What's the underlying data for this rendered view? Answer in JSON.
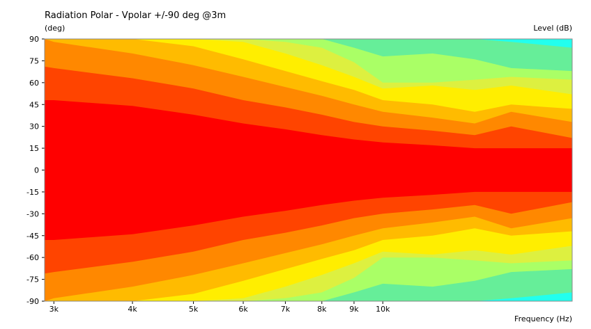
{
  "chart_data": {
    "type": "heatmap",
    "title": "Radiation Polar - Vpolar +/-90 deg @3m",
    "ylabel": "(deg)",
    "xlabel": "Frequency  (Hz)",
    "colorbar_label": "Level  (dB)",
    "x_scale": "log",
    "xlim": [
      2900,
      20000
    ],
    "ylim": [
      -90,
      90
    ],
    "x_ticks": [
      3000,
      4000,
      5000,
      6000,
      7000,
      8000,
      9000,
      10000
    ],
    "x_tick_labels": [
      "3k",
      "4k",
      "5k",
      "6k",
      "7k",
      "8k",
      "9k",
      "10k"
    ],
    "y_ticks": [
      90,
      75,
      60,
      45,
      30,
      15,
      0,
      -15,
      -30,
      -45,
      -60,
      -75,
      -90
    ],
    "y_tick_labels": [
      "90",
      "75",
      "60",
      "45",
      "30",
      "15",
      "0",
      "-15",
      "-30",
      "-45",
      "-60",
      "-75",
      "-90"
    ],
    "grid": false,
    "symmetric_about_zero": true,
    "contour_levels": [
      {
        "color": "#ff0000",
        "band": "highest"
      },
      {
        "color": "#ff4400",
        "band": "level 2"
      },
      {
        "color": "#ff8800",
        "band": "level 3"
      },
      {
        "color": "#ffbb00",
        "band": "level 4"
      },
      {
        "color": "#ffee00",
        "band": "level 5"
      },
      {
        "color": "#ddf040",
        "band": "level 6"
      },
      {
        "color": "#aaff66",
        "band": "level 7"
      },
      {
        "color": "#66ee99",
        "band": "level 8"
      },
      {
        "color": "#22ffee",
        "band": "lowest"
      }
    ],
    "contour_boundaries_deg": [
      {
        "band_below": 0,
        "freqs": [
          2900,
          3000,
          4000,
          5000,
          6000,
          7000,
          8000,
          9000,
          10000,
          12000,
          14000,
          16000,
          20000
        ],
        "angles": [
          48,
          48,
          44,
          38,
          32,
          28,
          24,
          21,
          19,
          17,
          15,
          15,
          15
        ]
      },
      {
        "band_below": 1,
        "freqs": [
          2900,
          3000,
          4000,
          5000,
          6000,
          7000,
          8000,
          9000,
          10000,
          12000,
          14000,
          16000,
          20000
        ],
        "angles": [
          71,
          70,
          63,
          56,
          48,
          43,
          38,
          33,
          30,
          27,
          24,
          30,
          22
        ]
      },
      {
        "band_below": 2,
        "freqs": [
          2900,
          3000,
          4000,
          5000,
          6000,
          7000,
          8000,
          9000,
          10000,
          12000,
          14000,
          16000,
          20000
        ],
        "angles": [
          90,
          88,
          80,
          72,
          64,
          57,
          51,
          45,
          40,
          36,
          32,
          40,
          33
        ]
      },
      {
        "band_below": 3,
        "freqs": [
          2900,
          3000,
          4000,
          5000,
          6000,
          7000,
          8000,
          9000,
          10000,
          12000,
          14000,
          16000,
          20000
        ],
        "angles": [
          90,
          90,
          90,
          85,
          76,
          68,
          61,
          55,
          48,
          45,
          40,
          45,
          42
        ]
      },
      {
        "band_below": 4,
        "freqs": [
          2900,
          3000,
          4000,
          5000,
          6000,
          7000,
          8000,
          9000,
          10000,
          12000,
          14000,
          16000,
          20000
        ],
        "angles": [
          90,
          90,
          90,
          90,
          88,
          80,
          72,
          64,
          56,
          58,
          55,
          58,
          52
        ]
      },
      {
        "band_below": 5,
        "freqs": [
          2900,
          3000,
          4000,
          5000,
          6000,
          7000,
          8000,
          9000,
          10000,
          12000,
          14000,
          16000,
          20000
        ],
        "angles": [
          90,
          90,
          90,
          90,
          90,
          88,
          84,
          74,
          60,
          60,
          62,
          64,
          62
        ]
      },
      {
        "band_below": 6,
        "freqs": [
          2900,
          3000,
          4000,
          5000,
          6000,
          7000,
          8000,
          9000,
          10000,
          12000,
          14000,
          16000,
          20000
        ],
        "angles": [
          90,
          90,
          90,
          90,
          90,
          90,
          90,
          84,
          78,
          80,
          76,
          70,
          68
        ]
      },
      {
        "band_below": 7,
        "freqs": [
          2900,
          3000,
          4000,
          5000,
          6000,
          7000,
          8000,
          9000,
          10000,
          12000,
          14000,
          16000,
          20000
        ],
        "angles": [
          90,
          90,
          90,
          90,
          90,
          90,
          90,
          90,
          90,
          90,
          90,
          88,
          84
        ]
      }
    ]
  }
}
